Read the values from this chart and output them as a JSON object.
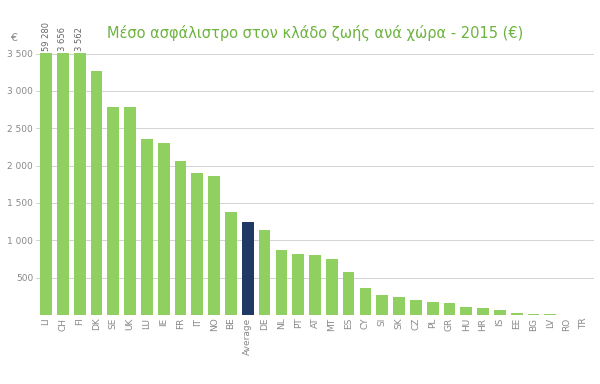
{
  "title": "Μέσο ασφάλιστρο στον κλάδο ζωής ανά χώρα - 2015 (€)",
  "categories": [
    "LI",
    "CH",
    "FI",
    "DK",
    "SE",
    "UK",
    "LU",
    "IE",
    "FR",
    "IT",
    "NO",
    "BE",
    "Average",
    "DE",
    "NL",
    "PT",
    "AT",
    "MT",
    "ES",
    "CY",
    "SI",
    "SK",
    "CZ",
    "PL",
    "GR",
    "HU",
    "HR",
    "IS",
    "EE",
    "BG",
    "LV",
    "RO",
    "TR"
  ],
  "display_values": [
    3510,
    3510,
    3510,
    3270,
    2790,
    2790,
    2350,
    2300,
    2060,
    1900,
    1860,
    1380,
    1240,
    1140,
    875,
    815,
    800,
    748,
    570,
    360,
    270,
    235,
    195,
    170,
    160,
    105,
    95,
    65,
    25,
    16,
    10,
    4,
    2
  ],
  "ann_texts": [
    "59 280",
    "3 656",
    "3 562"
  ],
  "ann_indices": [
    0,
    1,
    2
  ],
  "bar_color_green": "#90d060",
  "bar_color_dark": "#1f3864",
  "average_label": "Average",
  "ylabel": "€",
  "ylim": [
    0,
    3600
  ],
  "yticks": [
    500,
    1000,
    1500,
    2000,
    2500,
    3000,
    3500
  ],
  "ytick_labels": [
    "500",
    "1 000",
    "1 500",
    "2 000",
    "2 500",
    "3 000",
    "3 500"
  ],
  "background_color": "#ffffff",
  "grid_color": "#cccccc",
  "title_color": "#6db33f",
  "axis_label_color": "#888888",
  "title_fontsize": 10.5,
  "tick_fontsize": 6.5,
  "ylabel_fontsize": 8
}
